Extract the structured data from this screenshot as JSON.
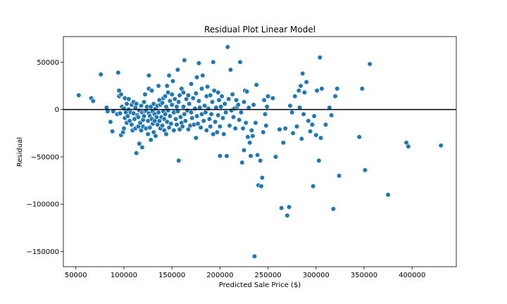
{
  "chart_data": {
    "type": "scatter",
    "title": "Residual Plot Linear Model",
    "xlabel": "Predicted Sale Price ($)",
    "ylabel": "Residual",
    "xlim": [
      37000,
      446000
    ],
    "ylim": [
      -166000,
      77000
    ],
    "xticks": [
      50000,
      100000,
      150000,
      200000,
      250000,
      300000,
      350000,
      400000
    ],
    "yticks": [
      50000,
      0,
      -50000,
      -100000,
      -150000
    ],
    "ytick_labels": [
      "50000",
      "0",
      "−50000",
      "−100000",
      "−150000"
    ],
    "reference_line_y": 0,
    "grid": false,
    "color": "#1f77b4",
    "points": [
      [
        53000,
        15000
      ],
      [
        66000,
        12000
      ],
      [
        68000,
        9000
      ],
      [
        76000,
        37000
      ],
      [
        82000,
        2000
      ],
      [
        83000,
        -2000
      ],
      [
        86000,
        -13000
      ],
      [
        88000,
        -23000
      ],
      [
        89000,
        -2000
      ],
      [
        93000,
        -5000
      ],
      [
        94000,
        39000
      ],
      [
        95000,
        20000
      ],
      [
        95000,
        14000
      ],
      [
        96000,
        -4000
      ],
      [
        97000,
        16000
      ],
      [
        97000,
        -27000
      ],
      [
        98000,
        3000
      ],
      [
        99000,
        -24000
      ],
      [
        100000,
        -20000
      ],
      [
        100000,
        1000
      ],
      [
        101000,
        12000
      ],
      [
        101000,
        -9000
      ],
      [
        102000,
        -3000
      ],
      [
        103000,
        6000
      ],
      [
        103000,
        -14000
      ],
      [
        104000,
        -7000
      ],
      [
        105000,
        11000
      ],
      [
        105000,
        0
      ],
      [
        106000,
        -12000
      ],
      [
        107000,
        -3000
      ],
      [
        108000,
        5000
      ],
      [
        108000,
        -16000
      ],
      [
        109000,
        -22000
      ],
      [
        110000,
        -4000
      ],
      [
        110000,
        8000
      ],
      [
        111000,
        -10000
      ],
      [
        112000,
        -20000
      ],
      [
        112000,
        2000
      ],
      [
        113000,
        -46000
      ],
      [
        113000,
        6000
      ],
      [
        114000,
        -6000
      ],
      [
        115000,
        -18000
      ],
      [
        115000,
        -8000
      ],
      [
        116000,
        -36000
      ],
      [
        116000,
        -1000
      ],
      [
        117000,
        -14000
      ],
      [
        118000,
        -22000
      ],
      [
        118000,
        4000
      ],
      [
        119000,
        -40000
      ],
      [
        119000,
        -3000
      ],
      [
        120000,
        -11000
      ],
      [
        120000,
        -18000
      ],
      [
        121000,
        8000
      ],
      [
        121000,
        -7000
      ],
      [
        122000,
        16000
      ],
      [
        122000,
        -2000
      ],
      [
        123000,
        -20000
      ],
      [
        123000,
        -1000
      ],
      [
        124000,
        3000
      ],
      [
        125000,
        -26000
      ],
      [
        125000,
        -12000
      ],
      [
        126000,
        36000
      ],
      [
        126000,
        22000
      ],
      [
        126000,
        -4000
      ],
      [
        127000,
        -7000
      ],
      [
        127000,
        -19000
      ],
      [
        128000,
        -32000
      ],
      [
        128000,
        3000
      ],
      [
        129000,
        20000
      ],
      [
        129000,
        -10000
      ],
      [
        130000,
        -15000
      ],
      [
        130000,
        -2000
      ],
      [
        131000,
        6000
      ],
      [
        131000,
        -24000
      ],
      [
        132000,
        -12000
      ],
      [
        132000,
        -5000
      ],
      [
        133000,
        -28000
      ],
      [
        133000,
        1000
      ],
      [
        134000,
        -8000
      ],
      [
        135000,
        -16000
      ],
      [
        135000,
        4000
      ],
      [
        136000,
        25000
      ],
      [
        136000,
        -3000
      ],
      [
        137000,
        -12000
      ],
      [
        137000,
        10000
      ],
      [
        138000,
        -20000
      ],
      [
        138000,
        5000
      ],
      [
        139000,
        -8000
      ],
      [
        140000,
        -17000
      ],
      [
        140000,
        7000
      ],
      [
        141000,
        -2000
      ],
      [
        141000,
        12000
      ],
      [
        142000,
        -22000
      ],
      [
        142000,
        -10000
      ],
      [
        143000,
        -5000
      ],
      [
        143000,
        14000
      ],
      [
        144000,
        -26000
      ],
      [
        144000,
        3000
      ],
      [
        145000,
        -13000
      ],
      [
        145000,
        25000
      ],
      [
        146000,
        -1000
      ],
      [
        146000,
        18000
      ],
      [
        147000,
        36000
      ],
      [
        147000,
        -19000
      ],
      [
        148000,
        -7000
      ],
      [
        148000,
        9000
      ],
      [
        149000,
        -15000
      ],
      [
        150000,
        5000
      ],
      [
        150000,
        16000
      ],
      [
        151000,
        30000
      ],
      [
        152000,
        -22000
      ],
      [
        152000,
        -3000
      ],
      [
        153000,
        11000
      ],
      [
        154000,
        -10000
      ],
      [
        155000,
        -16000
      ],
      [
        155000,
        3000
      ],
      [
        156000,
        42000
      ],
      [
        156000,
        -2000
      ],
      [
        157000,
        -54000
      ],
      [
        157000,
        8000
      ],
      [
        158000,
        -21000
      ],
      [
        158000,
        15000
      ],
      [
        159000,
        -8000
      ],
      [
        160000,
        22000
      ],
      [
        160000,
        -14000
      ],
      [
        161000,
        -18000
      ],
      [
        162000,
        18000
      ],
      [
        162000,
        3000
      ],
      [
        163000,
        52000
      ],
      [
        163000,
        -5000
      ],
      [
        164000,
        -12000
      ],
      [
        165000,
        11000
      ],
      [
        166000,
        -1000
      ],
      [
        167000,
        -21000
      ],
      [
        167000,
        15000
      ],
      [
        168000,
        6000
      ],
      [
        169000,
        -17000
      ],
      [
        170000,
        27000
      ],
      [
        170000,
        -3000
      ],
      [
        171000,
        -9000
      ],
      [
        172000,
        12000
      ],
      [
        173000,
        -16000
      ],
      [
        174000,
        1000
      ],
      [
        175000,
        -30000
      ],
      [
        175000,
        17000
      ],
      [
        176000,
        34000
      ],
      [
        176000,
        -7000
      ],
      [
        177000,
        -15000
      ],
      [
        178000,
        9000
      ],
      [
        178000,
        49000
      ],
      [
        179000,
        2000
      ],
      [
        180000,
        -19000
      ],
      [
        181000,
        22000
      ],
      [
        181000,
        -5000
      ],
      [
        182000,
        36000
      ],
      [
        183000,
        -12000
      ],
      [
        184000,
        4000
      ],
      [
        185000,
        -3000
      ],
      [
        186000,
        14000
      ],
      [
        186000,
        -22000
      ],
      [
        187000,
        24000
      ],
      [
        188000,
        1000
      ],
      [
        189000,
        -10000
      ],
      [
        190000,
        -18000
      ],
      [
        190000,
        15000
      ],
      [
        191000,
        -5000
      ],
      [
        192000,
        8000
      ],
      [
        193000,
        -26000
      ],
      [
        193000,
        50000
      ],
      [
        194000,
        20000
      ],
      [
        195000,
        -13000
      ],
      [
        196000,
        2000
      ],
      [
        197000,
        -24000
      ],
      [
        198000,
        18000
      ],
      [
        198000,
        -6000
      ],
      [
        199000,
        10000
      ],
      [
        200000,
        -49000
      ],
      [
        200000,
        -18000
      ],
      [
        201000,
        3000
      ],
      [
        202000,
        14000
      ],
      [
        203000,
        -9000
      ],
      [
        204000,
        -26000
      ],
      [
        205000,
        6000
      ],
      [
        206000,
        -3000
      ],
      [
        207000,
        -49000
      ],
      [
        208000,
        66000
      ],
      [
        209000,
        11000
      ],
      [
        210000,
        -17000
      ],
      [
        211000,
        42000
      ],
      [
        212000,
        -1000
      ],
      [
        213000,
        16000
      ],
      [
        214000,
        -8000
      ],
      [
        215000,
        1000
      ],
      [
        216000,
        -20000
      ],
      [
        217000,
        10000
      ],
      [
        218000,
        3000
      ],
      [
        219000,
        5000
      ],
      [
        220000,
        -11000
      ],
      [
        221000,
        50000
      ],
      [
        222000,
        -3000
      ],
      [
        223000,
        -56000
      ],
      [
        224000,
        -20000
      ],
      [
        225000,
        8000
      ],
      [
        225000,
        -43000
      ],
      [
        226000,
        20000
      ],
      [
        227000,
        -14000
      ],
      [
        228000,
        19000
      ],
      [
        229000,
        -29000
      ],
      [
        230000,
        2000
      ],
      [
        231000,
        -35000
      ],
      [
        232000,
        -49000
      ],
      [
        233000,
        -22000
      ],
      [
        234000,
        -28000
      ],
      [
        235000,
        5000
      ],
      [
        236000,
        -155000
      ],
      [
        237000,
        -14000
      ],
      [
        238000,
        26000
      ],
      [
        239000,
        -48000
      ],
      [
        240000,
        -80000
      ],
      [
        242000,
        -54000
      ],
      [
        243000,
        -81000
      ],
      [
        244000,
        -72000
      ],
      [
        245000,
        -24000
      ],
      [
        246000,
        10000
      ],
      [
        247000,
        -5000
      ],
      [
        248000,
        -17000
      ],
      [
        249000,
        3000
      ],
      [
        250000,
        14000
      ],
      [
        255000,
        12000
      ],
      [
        258000,
        -50000
      ],
      [
        262000,
        -21000
      ],
      [
        264000,
        -104000
      ],
      [
        266000,
        -35000
      ],
      [
        268000,
        -20000
      ],
      [
        270000,
        -112000
      ],
      [
        272000,
        -103000
      ],
      [
        273000,
        4000
      ],
      [
        275000,
        -3000
      ],
      [
        276000,
        -25000
      ],
      [
        278000,
        14000
      ],
      [
        280000,
        -18000
      ],
      [
        282000,
        20000
      ],
      [
        283000,
        2000
      ],
      [
        284000,
        25000
      ],
      [
        285000,
        -31000
      ],
      [
        286000,
        38000
      ],
      [
        287000,
        -5000
      ],
      [
        288000,
        18000
      ],
      [
        290000,
        29000
      ],
      [
        292000,
        -12000
      ],
      [
        294000,
        -23000
      ],
      [
        296000,
        -16000
      ],
      [
        297000,
        -81000
      ],
      [
        298000,
        -7000
      ],
      [
        300000,
        -27000
      ],
      [
        301000,
        20000
      ],
      [
        303000,
        -54000
      ],
      [
        304000,
        55000
      ],
      [
        305000,
        -30000
      ],
      [
        306000,
        22000
      ],
      [
        310000,
        -16000
      ],
      [
        314000,
        2000
      ],
      [
        316000,
        -6000
      ],
      [
        318000,
        -105000
      ],
      [
        320000,
        14000
      ],
      [
        322000,
        22000
      ],
      [
        324000,
        -70000
      ],
      [
        345000,
        -29000
      ],
      [
        348000,
        22000
      ],
      [
        351000,
        -64000
      ],
      [
        356000,
        48000
      ],
      [
        375000,
        -90000
      ],
      [
        394000,
        -35000
      ],
      [
        396000,
        -39000
      ],
      [
        430000,
        -38000
      ]
    ]
  }
}
